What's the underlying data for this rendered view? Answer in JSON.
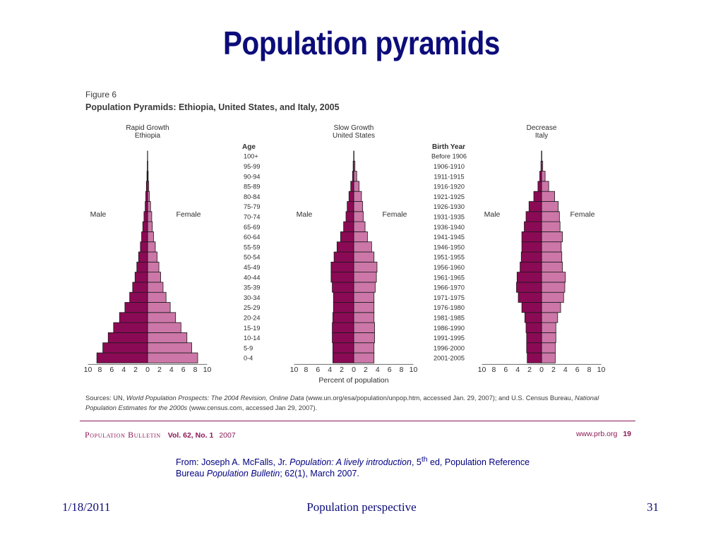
{
  "slide": {
    "title": "Population pyramids",
    "footer_date": "1/18/2011",
    "footer_title": "Population perspective",
    "footer_number": "31"
  },
  "figure": {
    "label": "Figure 6",
    "title": "Population Pyramids: Ethiopia, United States, and Italy, 2005",
    "sources_prefix": "Sources: UN, ",
    "sources_wpp": "World Population Prospects: The 2004 Revision, Online Data",
    "sources_mid": " (www.un.org/esa/population/unpop.htm, accessed Jan. 29, 2007); and U.S. Census Bureau, ",
    "sources_npe": "National Population Estimates for the 2000s",
    "sources_end": " (www.census.com, accessed Jan 29, 2007).",
    "publication": "Population Bulletin",
    "volume": "Vol. 62, No. 1",
    "year": "2007",
    "website": "www.prb.org",
    "page": "19"
  },
  "citation": {
    "prefix": "From: Joseph A. McFalls, Jr. ",
    "book": "Population: A lively introduction",
    "edition_num": ", 5",
    "edition_sup": "th",
    "after_edition": " ed, Population Reference Bureau ",
    "journal": "Population Bulletin",
    "issue": ";  62(1), March 2007."
  },
  "chart_data": {
    "type": "population-pyramid",
    "title": "Population Pyramids: Ethiopia, United States, and Italy, 2005",
    "xlabel": "Percent of population",
    "age_header": "Age",
    "birth_header": "Birth Year",
    "male_label": "Male",
    "female_label": "Female",
    "xlim": [
      -10,
      10
    ],
    "tick_labels": [
      "10",
      "8",
      "6",
      "4",
      "2",
      "0",
      "2",
      "4",
      "6",
      "8",
      "10"
    ],
    "colors": {
      "male": "#8b0a55",
      "female": "#cc77a8",
      "outline": "#1a1a1a"
    },
    "age_groups": [
      "0-4",
      "5-9",
      "10-14",
      "15-19",
      "20-24",
      "25-29",
      "30-34",
      "35-39",
      "40-44",
      "45-49",
      "50-54",
      "55-59",
      "60-64",
      "65-69",
      "70-74",
      "75-79",
      "80-84",
      "85-89",
      "90-94",
      "95-99",
      "100+"
    ],
    "birth_years": [
      "2001-2005",
      "1996-2000",
      "1991-1995",
      "1986-1990",
      "1981-1985",
      "1976-1980",
      "1971-1975",
      "1966-1970",
      "1961-1965",
      "1956-1960",
      "1951-1955",
      "1946-1950",
      "1941-1945",
      "1936-1940",
      "1931-1935",
      "1926-1930",
      "1921-1925",
      "1916-1920",
      "1911-1915",
      "1906-1910",
      "Before 1906"
    ],
    "pyramids": [
      {
        "category": "Rapid Growth",
        "country": "Ethiopia",
        "male": [
          8.5,
          7.5,
          6.6,
          5.7,
          4.7,
          3.8,
          3.0,
          2.5,
          2.1,
          1.8,
          1.5,
          1.2,
          1.0,
          0.8,
          0.6,
          0.4,
          0.3,
          0.2,
          0.1,
          0.05,
          0.02
        ],
        "female": [
          8.4,
          7.4,
          6.6,
          5.6,
          4.7,
          3.8,
          3.1,
          2.6,
          2.2,
          1.9,
          1.6,
          1.3,
          1.0,
          0.8,
          0.7,
          0.5,
          0.3,
          0.2,
          0.1,
          0.05,
          0.02
        ]
      },
      {
        "category": "Slow Growth",
        "country": "United States",
        "male": [
          3.5,
          3.5,
          3.6,
          3.6,
          3.5,
          3.4,
          3.4,
          3.6,
          3.8,
          3.8,
          3.3,
          2.8,
          2.2,
          1.7,
          1.3,
          1.1,
          0.8,
          0.5,
          0.2,
          0.1,
          0.02
        ],
        "female": [
          3.4,
          3.4,
          3.5,
          3.5,
          3.4,
          3.4,
          3.4,
          3.6,
          3.8,
          3.9,
          3.4,
          3.0,
          2.3,
          1.9,
          1.6,
          1.5,
          1.3,
          0.9,
          0.5,
          0.2,
          0.05
        ]
      },
      {
        "category": "Decrease",
        "country": "Italy",
        "male": [
          2.4,
          2.5,
          2.5,
          2.6,
          2.8,
          3.3,
          3.9,
          4.2,
          4.1,
          3.6,
          3.4,
          3.3,
          3.3,
          2.9,
          2.6,
          2.1,
          1.3,
          0.6,
          0.3,
          0.1,
          0.02
        ],
        "female": [
          2.3,
          2.3,
          2.4,
          2.4,
          2.7,
          3.2,
          3.7,
          3.9,
          4.0,
          3.5,
          3.4,
          3.3,
          3.5,
          3.1,
          3.0,
          2.8,
          2.2,
          1.2,
          0.6,
          0.2,
          0.05
        ]
      }
    ]
  }
}
